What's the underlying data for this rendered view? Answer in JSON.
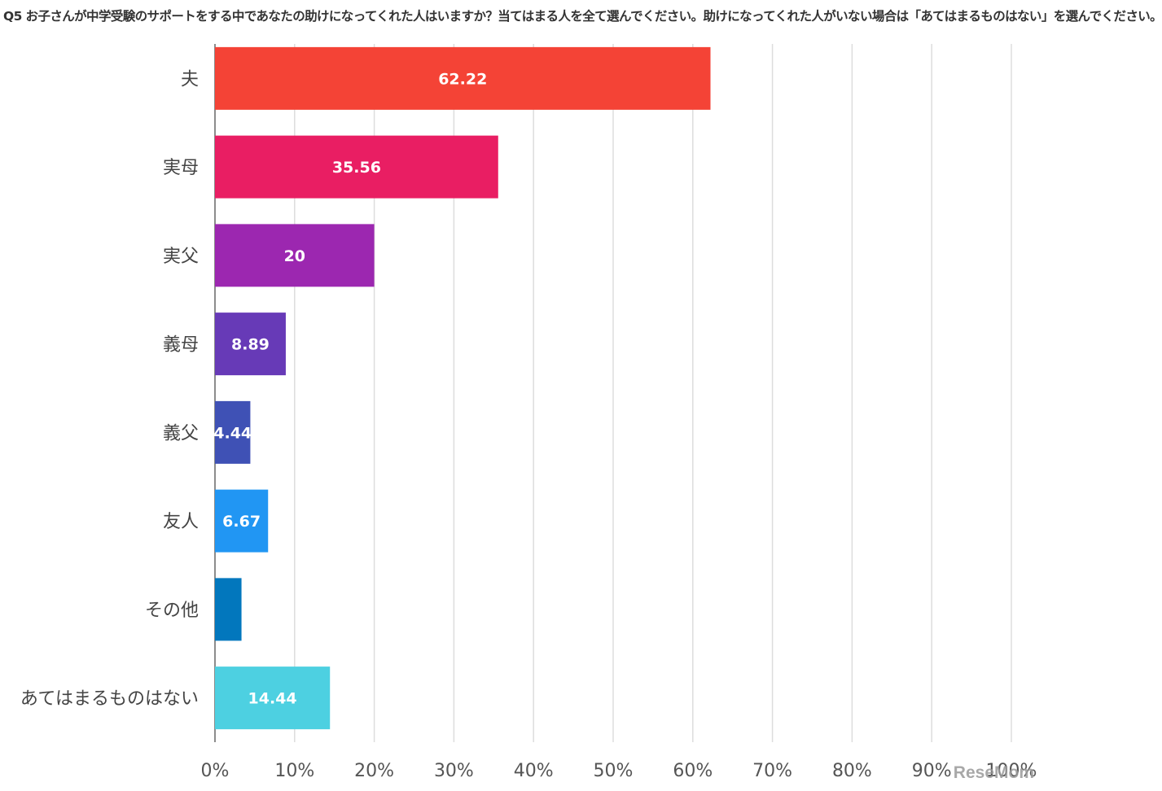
{
  "chart_data": {
    "type": "bar",
    "orientation": "horizontal",
    "title": "Q5 お子さんが中学受験のサポートをする中であなたの助けになってくれた人はいますか？当てはまる人を全て選んでください。助けになってくれた人がいない場合は「あてはまるものはない」を選んでください。",
    "categories": [
      "夫",
      "実母",
      "実父",
      "義母",
      "義父",
      "友人",
      "その他",
      "あてはまるものはない"
    ],
    "values": [
      62.22,
      35.56,
      20,
      8.89,
      4.44,
      6.67,
      3.33,
      14.44
    ],
    "data_labels": [
      "62.22",
      "35.56",
      "20",
      "8.89",
      "4.44",
      "6.67",
      "",
      "14.44"
    ],
    "colors": [
      "#f44336",
      "#e91e63",
      "#9c27b0",
      "#673ab7",
      "#3f51b5",
      "#2196f3",
      "#0277bd",
      "#4dd0e1"
    ],
    "xlim": [
      0,
      100
    ],
    "x_ticks": [
      "0%",
      "10%",
      "20%",
      "30%",
      "40%",
      "50%",
      "60%",
      "70%",
      "80%",
      "90%",
      "100%"
    ],
    "grid": true,
    "legend": "none"
  },
  "watermark": "ReseMom"
}
